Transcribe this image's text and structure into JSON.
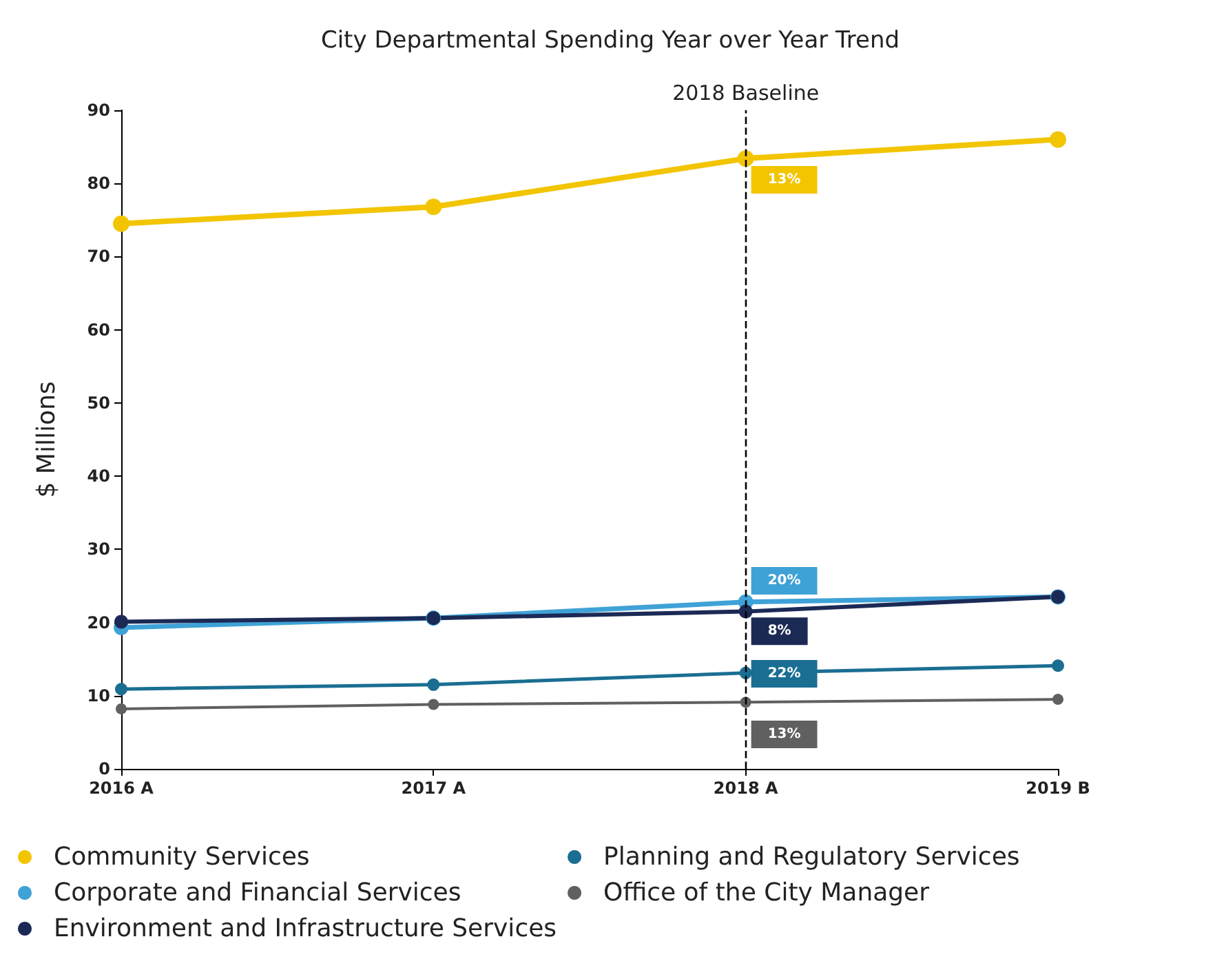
{
  "chart_data": {
    "type": "line",
    "title": "City Departmental Spending Year over Year Trend",
    "ylabel": "$ Millions",
    "categories": [
      "2016 A",
      "2017 A",
      "2018 A",
      "2019 B"
    ],
    "series": [
      {
        "name": "Community Services",
        "color": "#f2c500",
        "values": [
          74.5,
          76.8,
          83.4,
          86.0
        ]
      },
      {
        "name": "Corporate and Financial Services",
        "color": "#3fa2d6",
        "values": [
          19.3,
          20.6,
          22.8,
          23.5
        ]
      },
      {
        "name": "Environment and Infrastructure Services",
        "color": "#1b2a55",
        "values": [
          20.1,
          20.6,
          21.5,
          23.5
        ]
      },
      {
        "name": "Planning and Regulatory Services",
        "color": "#1a6e92",
        "values": [
          10.9,
          11.5,
          13.1,
          14.1
        ]
      },
      {
        "name": "Office of the City Manager",
        "color": "#606060",
        "values": [
          8.2,
          8.8,
          9.1,
          9.5
        ]
      }
    ],
    "ylim": [
      0,
      90
    ],
    "yticks": [
      0,
      10,
      20,
      30,
      40,
      50,
      60,
      70,
      80,
      90
    ],
    "grid": false,
    "legend": "bottom",
    "marker": "circle",
    "line_style": "solid",
    "ref_lines": [
      {
        "axis": "x",
        "value": "2018 A",
        "label": "2018 Baseline",
        "color": "#000000",
        "line_style": "dashed"
      }
    ],
    "annotations": [
      {
        "text": "13%",
        "x": "2018 A",
        "y": 80.5
      },
      {
        "text": "20%",
        "x": "2018 A",
        "y": 25.7
      },
      {
        "text": "8%",
        "x": "2018 A",
        "y": 18.8
      },
      {
        "text": "22%",
        "x": "2018 A",
        "y": 13
      },
      {
        "text": "13%",
        "x": "2018 A",
        "y": 4.7
      }
    ]
  }
}
